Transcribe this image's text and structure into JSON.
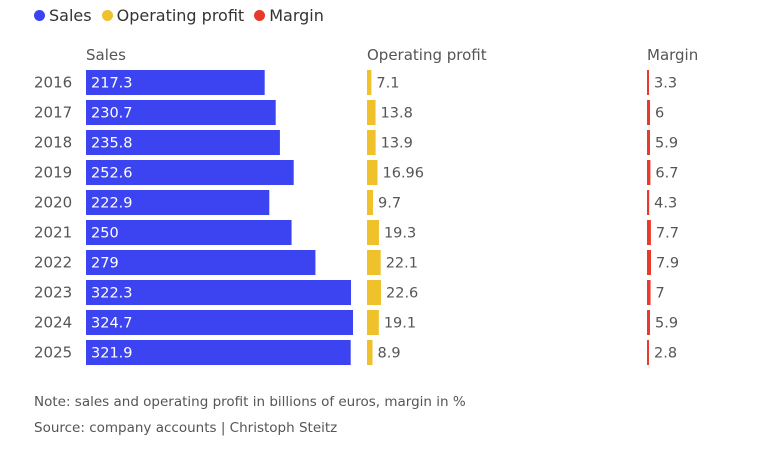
{
  "chart_data": {
    "type": "bar",
    "legend": [
      {
        "label": "Sales",
        "color": "#3b44f0"
      },
      {
        "label": "Operating profit",
        "color": "#efc12b"
      },
      {
        "label": "Margin",
        "color": "#e8392b"
      }
    ],
    "categories": [
      "2016",
      "2017",
      "2018",
      "2019",
      "2020",
      "2021",
      "2022",
      "2023",
      "2024",
      "2025"
    ],
    "series": [
      {
        "name": "Sales",
        "column_title": "Sales",
        "color": "#3b44f0",
        "values": [
          217.3,
          230.7,
          235.8,
          252.6,
          222.9,
          250,
          279,
          322.3,
          324.7,
          321.9
        ],
        "labels": [
          "217.3",
          "230.7",
          "235.8",
          "252.6",
          "222.9",
          "250",
          "279",
          "322.3",
          "324.7",
          "321.9"
        ]
      },
      {
        "name": "Operating profit",
        "column_title": "Operating profit",
        "color": "#efc12b",
        "values": [
          7.1,
          13.8,
          13.9,
          16.96,
          9.7,
          19.3,
          22.1,
          22.6,
          19.1,
          8.9
        ],
        "labels": [
          "7.1",
          "13.8",
          "13.9",
          "16.96",
          "9.7",
          "19.3",
          "22.1",
          "22.6",
          "19.1",
          "8.9"
        ]
      },
      {
        "name": "Margin",
        "column_title": "Margin",
        "color": "#e8392b",
        "values": [
          3.3,
          6,
          5.9,
          6.7,
          4.3,
          7.7,
          7.9,
          7,
          5.9,
          2.8
        ],
        "labels": [
          "3.3",
          "6",
          "5.9",
          "6.7",
          "4.3",
          "7.7",
          "7.9",
          "7",
          "5.9",
          "2.8"
        ]
      }
    ]
  },
  "footer": {
    "note": "Note: sales and operating profit in billions of euros, margin in %",
    "source": "Source: company accounts | Christoph Steitz"
  }
}
